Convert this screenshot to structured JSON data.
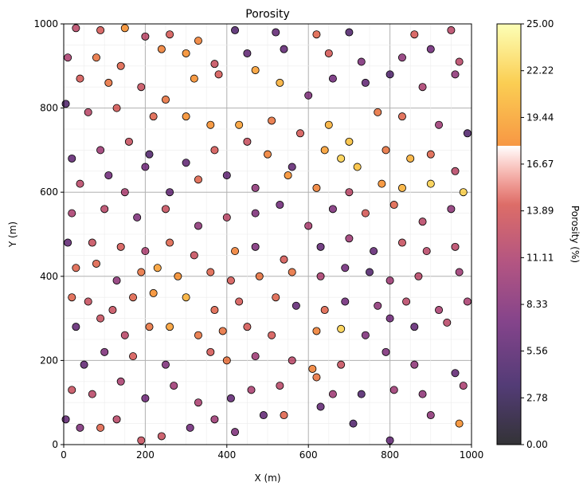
{
  "chart_data": {
    "type": "scatter",
    "title": "Porosity",
    "xlabel": "X (m)",
    "ylabel": "Y (m)",
    "xlim": [
      0,
      1000
    ],
    "ylim": [
      0,
      1000
    ],
    "xticks": [
      "0",
      "200",
      "400",
      "600",
      "800",
      "1000"
    ],
    "yticks": [
      "0",
      "200",
      "400",
      "600",
      "800",
      "1000"
    ],
    "grid": true,
    "colorbar": {
      "label": "Porosity (%)",
      "range": [
        0,
        25
      ],
      "ticks": [
        "0.00",
        "2.78",
        "5.56",
        "8.33",
        "11.11",
        "13.89",
        "16.67",
        "19.44",
        "22.22",
        "25.00"
      ],
      "colormap": "inferno"
    },
    "points": [
      [
        30,
        990,
        12
      ],
      [
        90,
        985,
        14
      ],
      [
        150,
        990,
        18
      ],
      [
        200,
        970,
        12
      ],
      [
        260,
        975,
        14
      ],
      [
        330,
        960,
        17
      ],
      [
        420,
        985,
        5
      ],
      [
        520,
        980,
        6
      ],
      [
        620,
        975,
        15
      ],
      [
        700,
        980,
        5
      ],
      [
        860,
        975,
        14
      ],
      [
        950,
        985,
        12
      ],
      [
        10,
        920,
        11
      ],
      [
        80,
        920,
        16
      ],
      [
        140,
        900,
        15
      ],
      [
        240,
        940,
        17
      ],
      [
        300,
        930,
        18
      ],
      [
        370,
        905,
        13
      ],
      [
        450,
        930,
        6
      ],
      [
        540,
        940,
        6
      ],
      [
        650,
        930,
        14
      ],
      [
        730,
        910,
        8
      ],
      [
        830,
        920,
        9
      ],
      [
        900,
        940,
        7
      ],
      [
        970,
        910,
        12
      ],
      [
        40,
        870,
        14
      ],
      [
        110,
        860,
        16
      ],
      [
        190,
        850,
        13
      ],
      [
        250,
        820,
        16
      ],
      [
        320,
        870,
        18
      ],
      [
        380,
        880,
        14
      ],
      [
        470,
        890,
        19
      ],
      [
        530,
        860,
        20
      ],
      [
        600,
        830,
        8
      ],
      [
        660,
        870,
        7
      ],
      [
        740,
        860,
        6
      ],
      [
        800,
        880,
        5
      ],
      [
        880,
        850,
        11
      ],
      [
        960,
        880,
        9
      ],
      [
        5,
        810,
        5
      ],
      [
        60,
        790,
        12
      ],
      [
        130,
        800,
        14
      ],
      [
        220,
        780,
        15
      ],
      [
        300,
        780,
        18
      ],
      [
        360,
        760,
        18
      ],
      [
        430,
        760,
        19
      ],
      [
        510,
        770,
        16
      ],
      [
        580,
        740,
        14
      ],
      [
        650,
        760,
        20
      ],
      [
        700,
        720,
        21
      ],
      [
        770,
        790,
        16
      ],
      [
        830,
        780,
        15
      ],
      [
        920,
        760,
        10
      ],
      [
        990,
        740,
        5
      ],
      [
        20,
        680,
        6
      ],
      [
        90,
        700,
        10
      ],
      [
        160,
        720,
        13
      ],
      [
        210,
        690,
        5
      ],
      [
        300,
        670,
        6
      ],
      [
        370,
        700,
        14
      ],
      [
        450,
        720,
        13
      ],
      [
        500,
        690,
        17
      ],
      [
        560,
        660,
        6
      ],
      [
        640,
        700,
        19
      ],
      [
        680,
        680,
        22
      ],
      [
        720,
        660,
        21
      ],
      [
        790,
        700,
        16
      ],
      [
        850,
        680,
        20
      ],
      [
        900,
        690,
        15
      ],
      [
        960,
        650,
        12
      ],
      [
        40,
        620,
        12
      ],
      [
        110,
        640,
        7
      ],
      [
        150,
        600,
        11
      ],
      [
        200,
        660,
        7
      ],
      [
        260,
        600,
        6
      ],
      [
        330,
        630,
        15
      ],
      [
        400,
        640,
        6
      ],
      [
        470,
        610,
        9
      ],
      [
        550,
        640,
        18
      ],
      [
        620,
        610,
        17
      ],
      [
        700,
        600,
        12
      ],
      [
        780,
        620,
        18
      ],
      [
        830,
        610,
        20
      ],
      [
        900,
        620,
        22
      ],
      [
        980,
        600,
        22
      ],
      [
        20,
        550,
        11
      ],
      [
        100,
        560,
        12
      ],
      [
        180,
        540,
        8
      ],
      [
        250,
        560,
        13
      ],
      [
        330,
        520,
        9
      ],
      [
        400,
        540,
        12
      ],
      [
        470,
        550,
        8
      ],
      [
        530,
        570,
        7
      ],
      [
        600,
        520,
        11
      ],
      [
        660,
        560,
        8
      ],
      [
        740,
        550,
        14
      ],
      [
        810,
        570,
        15
      ],
      [
        880,
        530,
        12
      ],
      [
        950,
        560,
        9
      ],
      [
        10,
        480,
        6
      ],
      [
        70,
        480,
        13
      ],
      [
        140,
        470,
        14
      ],
      [
        200,
        460,
        11
      ],
      [
        260,
        480,
        15
      ],
      [
        320,
        450,
        13
      ],
      [
        420,
        460,
        17
      ],
      [
        470,
        470,
        8
      ],
      [
        540,
        440,
        14
      ],
      [
        630,
        470,
        6
      ],
      [
        700,
        490,
        10
      ],
      [
        760,
        460,
        6
      ],
      [
        830,
        480,
        13
      ],
      [
        890,
        460,
        12
      ],
      [
        960,
        470,
        12
      ],
      [
        30,
        420,
        15
      ],
      [
        80,
        430,
        15
      ],
      [
        130,
        390,
        9
      ],
      [
        190,
        410,
        16
      ],
      [
        230,
        420,
        19
      ],
      [
        280,
        400,
        18
      ],
      [
        360,
        410,
        15
      ],
      [
        410,
        390,
        14
      ],
      [
        480,
        400,
        16
      ],
      [
        560,
        410,
        16
      ],
      [
        630,
        400,
        11
      ],
      [
        690,
        420,
        7
      ],
      [
        750,
        410,
        5
      ],
      [
        800,
        390,
        10
      ],
      [
        870,
        400,
        12
      ],
      [
        970,
        410,
        10
      ],
      [
        20,
        350,
        15
      ],
      [
        60,
        340,
        13
      ],
      [
        120,
        320,
        13
      ],
      [
        170,
        350,
        15
      ],
      [
        220,
        360,
        18
      ],
      [
        300,
        350,
        20
      ],
      [
        370,
        320,
        15
      ],
      [
        430,
        340,
        14
      ],
      [
        520,
        350,
        15
      ],
      [
        570,
        330,
        6
      ],
      [
        640,
        320,
        15
      ],
      [
        690,
        340,
        7
      ],
      [
        770,
        330,
        9
      ],
      [
        840,
        340,
        12
      ],
      [
        920,
        320,
        11
      ],
      [
        990,
        340,
        11
      ],
      [
        30,
        280,
        6
      ],
      [
        90,
        300,
        13
      ],
      [
        150,
        260,
        12
      ],
      [
        210,
        280,
        16
      ],
      [
        260,
        280,
        19
      ],
      [
        330,
        260,
        16
      ],
      [
        390,
        270,
        16
      ],
      [
        450,
        280,
        14
      ],
      [
        510,
        260,
        14
      ],
      [
        620,
        270,
        17
      ],
      [
        680,
        275,
        22
      ],
      [
        740,
        260,
        8
      ],
      [
        800,
        300,
        7
      ],
      [
        860,
        280,
        6
      ],
      [
        940,
        290,
        12
      ],
      [
        50,
        190,
        6
      ],
      [
        100,
        220,
        8
      ],
      [
        170,
        210,
        14
      ],
      [
        250,
        190,
        8
      ],
      [
        360,
        220,
        14
      ],
      [
        400,
        200,
        16
      ],
      [
        470,
        210,
        10
      ],
      [
        560,
        200,
        12
      ],
      [
        610,
        180,
        17
      ],
      [
        680,
        190,
        13
      ],
      [
        790,
        220,
        8
      ],
      [
        860,
        190,
        9
      ],
      [
        960,
        170,
        6
      ],
      [
        20,
        130,
        13
      ],
      [
        70,
        120,
        12
      ],
      [
        140,
        150,
        11
      ],
      [
        200,
        110,
        7
      ],
      [
        270,
        140,
        10
      ],
      [
        330,
        100,
        11
      ],
      [
        410,
        110,
        6
      ],
      [
        460,
        130,
        11
      ],
      [
        530,
        140,
        12
      ],
      [
        620,
        160,
        16
      ],
      [
        660,
        120,
        10
      ],
      [
        730,
        120,
        5
      ],
      [
        810,
        130,
        10
      ],
      [
        880,
        120,
        9
      ],
      [
        980,
        140,
        11
      ],
      [
        5,
        60,
        6
      ],
      [
        40,
        40,
        8
      ],
      [
        90,
        40,
        15
      ],
      [
        130,
        60,
        12
      ],
      [
        190,
        10,
        13
      ],
      [
        240,
        20,
        13
      ],
      [
        310,
        40,
        7
      ],
      [
        370,
        60,
        10
      ],
      [
        420,
        30,
        8
      ],
      [
        490,
        70,
        6
      ],
      [
        540,
        70,
        15
      ],
      [
        630,
        90,
        6
      ],
      [
        710,
        50,
        5
      ],
      [
        800,
        10,
        6
      ],
      [
        900,
        70,
        9
      ],
      [
        970,
        50,
        18
      ]
    ]
  }
}
